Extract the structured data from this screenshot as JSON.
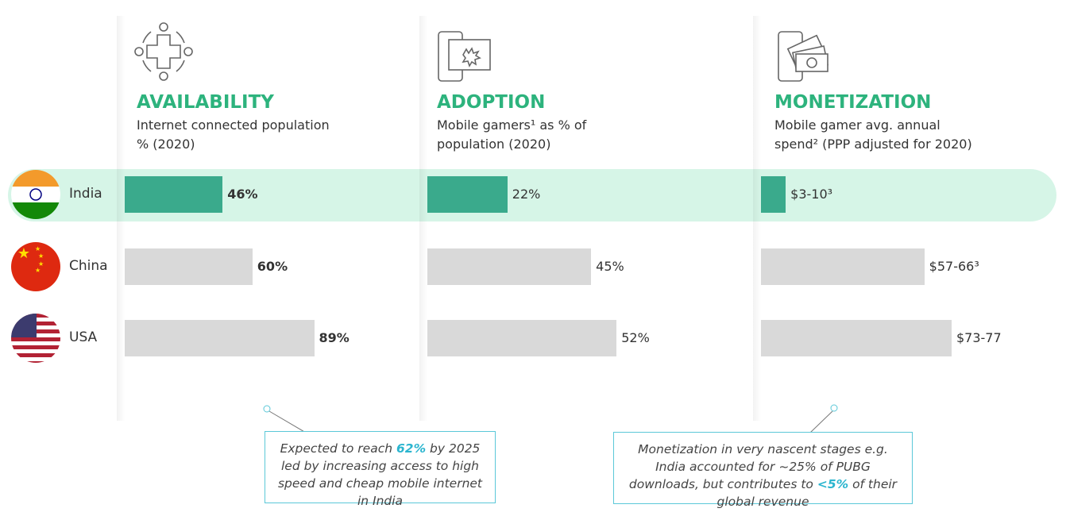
{
  "categories": [
    "India",
    "China",
    "USA"
  ],
  "highlight_index": 0,
  "chart_data": [
    {
      "type": "bar",
      "title": "AVAILABILITY",
      "subtitle": "Internet connected population % (2020)",
      "values": [
        46,
        60,
        89
      ],
      "value_labels": [
        "46%",
        "60%",
        "89%"
      ],
      "colors": [
        "#3aaa8c",
        "#d9d9d9",
        "#d9d9d9"
      ],
      "xlim": [
        0,
        100
      ],
      "label_bold": true
    },
    {
      "type": "bar",
      "title": "ADOPTION",
      "subtitle": "Mobile gamers¹ as % of population (2020)",
      "values": [
        22,
        45,
        52
      ],
      "value_labels": [
        "22%",
        "45%",
        "52%"
      ],
      "colors": [
        "#3aaa8c",
        "#d9d9d9",
        "#d9d9d9"
      ],
      "xlim": [
        0,
        58.5
      ],
      "label_bold": false
    },
    {
      "type": "range_bar",
      "title": "MONETIZATION",
      "subtitle": "Mobile gamer avg. annual spend² (PPP adjusted for 2020)",
      "values": [
        [
          3,
          10
        ],
        [
          57,
          66
        ],
        [
          73,
          77
        ]
      ],
      "value_labels": [
        "$3-10³",
        "$57-66³",
        "$73-77"
      ],
      "colors": [
        "#3aaa8c",
        "#d9d9d9",
        "#d9d9d9"
      ],
      "xlim": [
        0,
        86
      ],
      "label_bold": false
    }
  ],
  "annotations": [
    {
      "parts": [
        "Expected to reach ",
        "62%",
        " by 2025 led by increasing access to high speed and cheap mobile internet in India"
      ],
      "highlight_part": 1
    },
    {
      "parts": [
        "Monetization in very nascent stages e.g. India accounted for ~25% of PUBG downloads, but contributes to ",
        "<5%",
        " of their global revenue"
      ],
      "highlight_part": 1
    }
  ]
}
